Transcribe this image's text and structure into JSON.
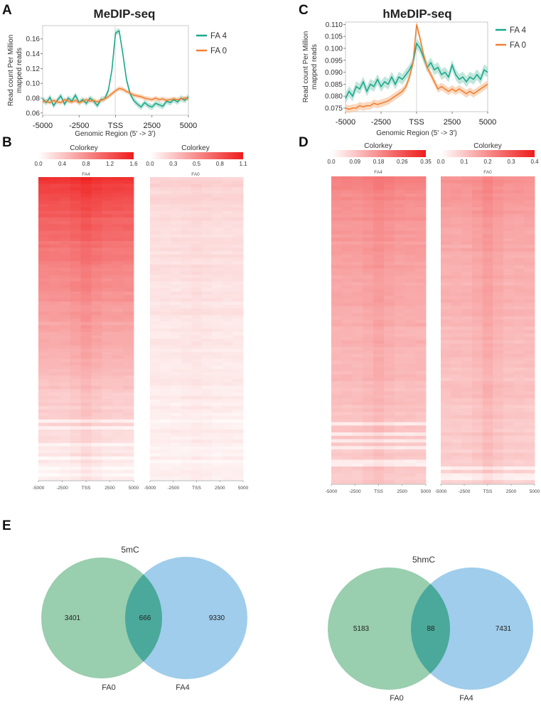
{
  "panel_labels": [
    "A",
    "B",
    "C",
    "D",
    "E"
  ],
  "colors": {
    "fa4_line": "#1aa88b",
    "fa4_band": "#a7dccd",
    "fa0_line": "#f08033",
    "fa0_band": "#f6c7a4",
    "heat_max": "#ef1c1c",
    "heat_min": "#ffffff",
    "venn_left": "#7fc29a",
    "venn_right": "#88c1e6",
    "venn_overlap": "#4aa99b"
  },
  "chart_data": [
    {
      "id": "A",
      "type": "line",
      "title": "MeDIP-seq",
      "xlabel": "Genomic Region (5' -> 3')",
      "ylabel_lines": [
        "Read count Per Million",
        "mapped reads"
      ],
      "x": [
        -5000,
        -4750,
        -4500,
        -4250,
        -4000,
        -3750,
        -3500,
        -3250,
        -3000,
        -2750,
        -2500,
        -2250,
        -2000,
        -1750,
        -1500,
        -1250,
        -1000,
        -750,
        -500,
        -250,
        0,
        250,
        500,
        750,
        1000,
        1250,
        1500,
        1750,
        2000,
        2250,
        2500,
        2750,
        3000,
        3250,
        3500,
        3750,
        4000,
        4250,
        4500,
        4750,
        5000
      ],
      "xticks": [
        -5000,
        -2500,
        0,
        2500,
        5000
      ],
      "xticklabels": [
        "-5000",
        "-2500",
        "TSS",
        "2500",
        "5000"
      ],
      "yticks": [
        0.06,
        0.08,
        0.1,
        0.12,
        0.14,
        0.16
      ],
      "yticklabels": [
        "0.06",
        "0.08",
        "0.10",
        "0.12",
        "0.14",
        "0.16"
      ],
      "ylim": [
        0.057,
        0.178
      ],
      "xlim": [
        -5000,
        5000
      ],
      "legend_position": "right",
      "series": [
        {
          "name": "FA 4",
          "values": [
            0.079,
            0.074,
            0.081,
            0.07,
            0.077,
            0.083,
            0.072,
            0.08,
            0.076,
            0.084,
            0.074,
            0.078,
            0.073,
            0.08,
            0.076,
            0.07,
            0.078,
            0.079,
            0.09,
            0.118,
            0.168,
            0.171,
            0.14,
            0.105,
            0.086,
            0.077,
            0.072,
            0.068,
            0.074,
            0.07,
            0.068,
            0.073,
            0.071,
            0.069,
            0.076,
            0.074,
            0.078,
            0.075,
            0.08,
            0.077,
            0.082
          ],
          "band": 0.004,
          "color_key": "fa4_line",
          "band_key": "fa4_band"
        },
        {
          "name": "FA 0",
          "values": [
            0.075,
            0.076,
            0.074,
            0.077,
            0.075,
            0.074,
            0.078,
            0.076,
            0.075,
            0.077,
            0.074,
            0.076,
            0.078,
            0.076,
            0.077,
            0.075,
            0.077,
            0.079,
            0.082,
            0.086,
            0.09,
            0.093,
            0.092,
            0.089,
            0.087,
            0.084,
            0.083,
            0.082,
            0.08,
            0.079,
            0.078,
            0.08,
            0.078,
            0.079,
            0.077,
            0.078,
            0.079,
            0.078,
            0.079,
            0.08,
            0.079
          ],
          "band": 0.003,
          "color_key": "fa0_line",
          "band_key": "fa0_band"
        }
      ]
    },
    {
      "id": "C",
      "type": "line",
      "title": "hMeDIP-seq",
      "xlabel": "Genomic Region (5' -> 3')",
      "ylabel_lines": [
        "Read count Per Million",
        "mapped reads"
      ],
      "x": [
        -5000,
        -4750,
        -4500,
        -4250,
        -4000,
        -3750,
        -3500,
        -3250,
        -3000,
        -2750,
        -2500,
        -2250,
        -2000,
        -1750,
        -1500,
        -1250,
        -1000,
        -750,
        -500,
        -250,
        0,
        250,
        500,
        750,
        1000,
        1250,
        1500,
        1750,
        2000,
        2250,
        2500,
        2750,
        3000,
        3250,
        3500,
        3750,
        4000,
        4250,
        4500,
        4750,
        5000
      ],
      "xticks": [
        -5000,
        -2500,
        0,
        2500,
        5000
      ],
      "xticklabels": [
        "-5000",
        "-2500",
        "TSS",
        "2500",
        "5000"
      ],
      "yticks": [
        0.075,
        0.08,
        0.085,
        0.09,
        0.095,
        0.1,
        0.105,
        0.11
      ],
      "yticklabels": [
        "0.075",
        "0.080",
        "0.085",
        "0.090",
        "0.095",
        "0.100",
        "0.105",
        "0.110"
      ],
      "ylim": [
        0.0735,
        0.111
      ],
      "xlim": [
        -5000,
        5000
      ],
      "legend_position": "right",
      "series": [
        {
          "name": "FA 4",
          "values": [
            0.079,
            0.082,
            0.08,
            0.084,
            0.083,
            0.086,
            0.082,
            0.085,
            0.084,
            0.087,
            0.084,
            0.086,
            0.085,
            0.088,
            0.085,
            0.088,
            0.087,
            0.089,
            0.091,
            0.094,
            0.102,
            0.1,
            0.096,
            0.092,
            0.094,
            0.091,
            0.092,
            0.089,
            0.09,
            0.088,
            0.093,
            0.089,
            0.087,
            0.088,
            0.086,
            0.088,
            0.087,
            0.089,
            0.087,
            0.091,
            0.09
          ],
          "band": 0.0022,
          "color_key": "fa4_line",
          "band_key": "fa4_band"
        },
        {
          "name": "FA 0",
          "values": [
            0.075,
            0.0745,
            0.075,
            0.075,
            0.076,
            0.0755,
            0.076,
            0.076,
            0.077,
            0.0765,
            0.077,
            0.0775,
            0.078,
            0.079,
            0.08,
            0.081,
            0.082,
            0.084,
            0.088,
            0.094,
            0.11,
            0.104,
            0.097,
            0.092,
            0.089,
            0.086,
            0.083,
            0.084,
            0.083,
            0.082,
            0.083,
            0.082,
            0.083,
            0.082,
            0.081,
            0.082,
            0.081,
            0.082,
            0.083,
            0.084,
            0.085
          ],
          "band": 0.0016,
          "color_key": "fa0_line",
          "band_key": "fa0_band"
        }
      ]
    },
    {
      "id": "B",
      "type": "heatmap",
      "colorkey_title": "Colorkey",
      "panels": [
        {
          "label": "FA4",
          "colorkey_ticks": [
            "0.0",
            "0.4",
            "0.8",
            "1.2",
            "1.6"
          ],
          "colorkey_range": [
            0.0,
            1.6
          ],
          "top_intensity": 0.9,
          "bottom_intensity": 0.07,
          "center_boost": 0.06
        },
        {
          "label": "FA0",
          "colorkey_ticks": [
            "0.0",
            "0.3",
            "0.5",
            "0.8",
            "1.1"
          ],
          "colorkey_range": [
            0.0,
            1.1
          ],
          "top_intensity": 0.2,
          "bottom_intensity": 0.06,
          "center_boost": 0.02
        }
      ],
      "xticklabels": [
        "-5000",
        "-2500",
        "TSS",
        "2500",
        "5000"
      ]
    },
    {
      "id": "D",
      "type": "heatmap",
      "colorkey_title": "Colorkey",
      "panels": [
        {
          "label": "FA4",
          "colorkey_ticks": [
            "0.0",
            "0.09",
            "0.18",
            "0.26",
            "0.35"
          ],
          "colorkey_range": [
            0.0,
            0.35
          ],
          "top_intensity": 0.55,
          "bottom_intensity": 0.22,
          "center_boost": 0.05
        },
        {
          "label": "FA0",
          "colorkey_ticks": [
            "0.0",
            "0.1",
            "0.2",
            "0.3",
            "0.4"
          ],
          "colorkey_range": [
            0.0,
            0.4
          ],
          "top_intensity": 0.48,
          "bottom_intensity": 0.2,
          "center_boost": 0.07
        }
      ],
      "xticklabels": [
        "-5000",
        "-2500",
        "TSS",
        "2500",
        "5000"
      ]
    },
    {
      "id": "E",
      "type": "venn",
      "diagrams": [
        {
          "title": "5mC",
          "sets": [
            "FA0",
            "FA4"
          ],
          "left_only": "3401",
          "overlap": "666",
          "right_only": "9330"
        },
        {
          "title": "5hmC",
          "sets": [
            "FA0",
            "FA4"
          ],
          "left_only": "5183",
          "overlap": "88",
          "right_only": "7431"
        }
      ]
    }
  ]
}
